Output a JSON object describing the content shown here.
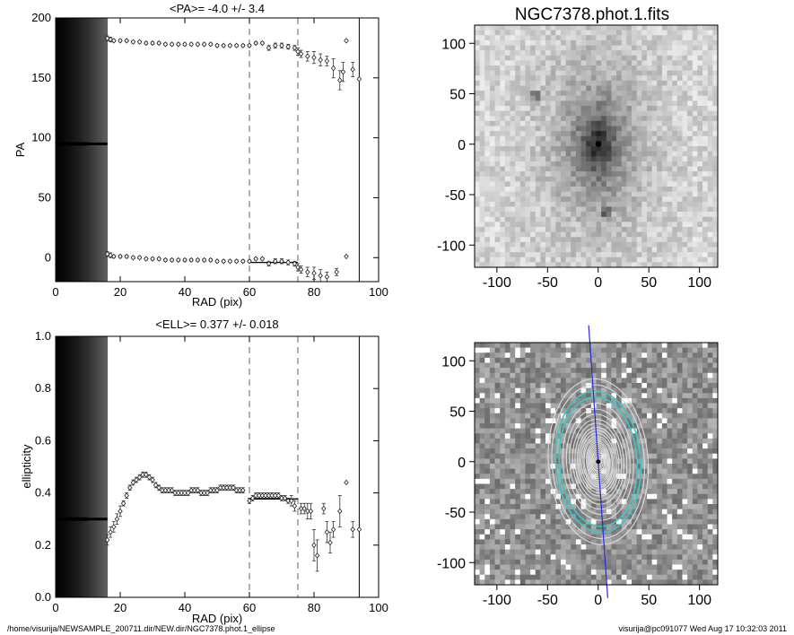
{
  "chart_data": [
    {
      "type": "scatter",
      "title": "<PA>=  -4.0 +/-   3.4",
      "xlabel": "RAD (pix)",
      "ylabel": "PA",
      "xlim": [
        0,
        100
      ],
      "ylim": [
        -20,
        200
      ],
      "xticks": [
        "0",
        "20",
        "40",
        "60",
        "80",
        "100"
      ],
      "yticks": [
        "0",
        "50",
        "100",
        "150",
        "200"
      ],
      "reference_lines": {
        "dashed_x": [
          60,
          75
        ],
        "solid_x": [
          94
        ],
        "fit_range": [
          60,
          75
        ],
        "fit_value": -4.0
      },
      "series": [
        {
          "points": [
            {
              "x": 16,
              "y": 183,
              "err": 2
            },
            {
              "x": 17,
              "y": 182,
              "err": 2
            },
            {
              "x": 18,
              "y": 181,
              "err": 1
            },
            {
              "x": 20,
              "y": 181,
              "err": 1
            },
            {
              "x": 22,
              "y": 181,
              "err": 1
            },
            {
              "x": 24,
              "y": 180,
              "err": 1
            },
            {
              "x": 26,
              "y": 180,
              "err": 1
            },
            {
              "x": 28,
              "y": 179,
              "err": 1
            },
            {
              "x": 30,
              "y": 179,
              "err": 1
            },
            {
              "x": 32,
              "y": 179,
              "err": 1
            },
            {
              "x": 34,
              "y": 178,
              "err": 1
            },
            {
              "x": 36,
              "y": 178,
              "err": 1
            },
            {
              "x": 38,
              "y": 178,
              "err": 1
            },
            {
              "x": 40,
              "y": 178,
              "err": 1
            },
            {
              "x": 42,
              "y": 178,
              "err": 1
            },
            {
              "x": 44,
              "y": 178,
              "err": 1
            },
            {
              "x": 46,
              "y": 178,
              "err": 1
            },
            {
              "x": 48,
              "y": 178,
              "err": 1
            },
            {
              "x": 50,
              "y": 177,
              "err": 1
            },
            {
              "x": 52,
              "y": 177,
              "err": 1
            },
            {
              "x": 54,
              "y": 177,
              "err": 1
            },
            {
              "x": 56,
              "y": 177,
              "err": 1
            },
            {
              "x": 58,
              "y": 177,
              "err": 1
            },
            {
              "x": 60,
              "y": 177,
              "err": 1
            },
            {
              "x": 62,
              "y": 179,
              "err": 1
            },
            {
              "x": 64,
              "y": 179,
              "err": 1
            },
            {
              "x": 66,
              "y": 175,
              "err": 2
            },
            {
              "x": 68,
              "y": 177,
              "err": 2
            },
            {
              "x": 70,
              "y": 177,
              "err": 2
            },
            {
              "x": 72,
              "y": 176,
              "err": 2
            },
            {
              "x": 74,
              "y": 175,
              "err": 2
            },
            {
              "x": 75,
              "y": 172,
              "err": 3
            },
            {
              "x": 76,
              "y": 170,
              "err": 3
            },
            {
              "x": 78,
              "y": 168,
              "err": 4
            },
            {
              "x": 80,
              "y": 167,
              "err": 5
            },
            {
              "x": 82,
              "y": 165,
              "err": 5
            },
            {
              "x": 84,
              "y": 164,
              "err": 4
            },
            {
              "x": 86,
              "y": 158,
              "err": 8
            },
            {
              "x": 88,
              "y": 148,
              "err": 8
            },
            {
              "x": 89,
              "y": 155,
              "err": 8
            },
            {
              "x": 90,
              "y": 181,
              "err": 0
            },
            {
              "x": 92,
              "y": 157,
              "err": 6
            },
            {
              "x": 94,
              "y": 149,
              "err": 0
            }
          ]
        },
        {
          "points": [
            {
              "x": 16,
              "y": 3,
              "err": 2
            },
            {
              "x": 17,
              "y": 2,
              "err": 2
            },
            {
              "x": 18,
              "y": 1,
              "err": 1
            },
            {
              "x": 20,
              "y": 1,
              "err": 1
            },
            {
              "x": 22,
              "y": 1,
              "err": 1
            },
            {
              "x": 24,
              "y": 0,
              "err": 1
            },
            {
              "x": 26,
              "y": 0,
              "err": 1
            },
            {
              "x": 28,
              "y": -1,
              "err": 1
            },
            {
              "x": 30,
              "y": -1,
              "err": 1
            },
            {
              "x": 32,
              "y": -1,
              "err": 1
            },
            {
              "x": 34,
              "y": -2,
              "err": 1
            },
            {
              "x": 36,
              "y": -2,
              "err": 1
            },
            {
              "x": 38,
              "y": -2,
              "err": 1
            },
            {
              "x": 40,
              "y": -2,
              "err": 1
            },
            {
              "x": 42,
              "y": -2,
              "err": 1
            },
            {
              "x": 44,
              "y": -2,
              "err": 1
            },
            {
              "x": 46,
              "y": -2,
              "err": 1
            },
            {
              "x": 48,
              "y": -2,
              "err": 1
            },
            {
              "x": 50,
              "y": -3,
              "err": 1
            },
            {
              "x": 52,
              "y": -3,
              "err": 1
            },
            {
              "x": 54,
              "y": -3,
              "err": 1
            },
            {
              "x": 56,
              "y": -3,
              "err": 1
            },
            {
              "x": 58,
              "y": -3,
              "err": 1
            },
            {
              "x": 60,
              "y": -3,
              "err": 1
            },
            {
              "x": 62,
              "y": -1,
              "err": 1
            },
            {
              "x": 64,
              "y": -1,
              "err": 1
            },
            {
              "x": 66,
              "y": -5,
              "err": 2
            },
            {
              "x": 68,
              "y": -3,
              "err": 2
            },
            {
              "x": 70,
              "y": -3,
              "err": 2
            },
            {
              "x": 72,
              "y": -4,
              "err": 2
            },
            {
              "x": 74,
              "y": -5,
              "err": 2
            },
            {
              "x": 75,
              "y": -8,
              "err": 3
            },
            {
              "x": 76,
              "y": -10,
              "err": 3
            },
            {
              "x": 78,
              "y": -12,
              "err": 4
            },
            {
              "x": 80,
              "y": -13,
              "err": 5
            },
            {
              "x": 82,
              "y": -15,
              "err": 5
            },
            {
              "x": 84,
              "y": -16,
              "err": 4
            },
            {
              "x": 87,
              "y": -12,
              "err": 3
            },
            {
              "x": 90,
              "y": 1,
              "err": 0
            }
          ]
        }
      ]
    },
    {
      "type": "scatter",
      "title": "<ELL>= 0.377 +/-  0.018",
      "xlabel": "RAD (pix)",
      "ylabel": "ellipticity",
      "xlim": [
        0,
        100
      ],
      "ylim": [
        0,
        1
      ],
      "xticks": [
        "0",
        "20",
        "40",
        "60",
        "80",
        "100"
      ],
      "yticks": [
        "0.0",
        "0.2",
        "0.4",
        "0.6",
        "0.8",
        "1.0"
      ],
      "reference_lines": {
        "dashed_x": [
          60,
          75
        ],
        "solid_x": [
          94
        ],
        "fit_range": [
          60,
          75
        ],
        "fit_value": 0.377
      },
      "series": [
        {
          "points": [
            {
              "x": 16,
              "y": 0.22,
              "err": 0.02
            },
            {
              "x": 17,
              "y": 0.25,
              "err": 0.02
            },
            {
              "x": 18,
              "y": 0.27,
              "err": 0.02
            },
            {
              "x": 19,
              "y": 0.3,
              "err": 0.02
            },
            {
              "x": 20,
              "y": 0.33,
              "err": 0.02
            },
            {
              "x": 21,
              "y": 0.36,
              "err": 0.01
            },
            {
              "x": 22,
              "y": 0.39,
              "err": 0.01
            },
            {
              "x": 23,
              "y": 0.42,
              "err": 0.01
            },
            {
              "x": 24,
              "y": 0.44,
              "err": 0.01
            },
            {
              "x": 25,
              "y": 0.45,
              "err": 0.01
            },
            {
              "x": 26,
              "y": 0.46,
              "err": 0.01
            },
            {
              "x": 27,
              "y": 0.47,
              "err": 0.01
            },
            {
              "x": 28,
              "y": 0.47,
              "err": 0.01
            },
            {
              "x": 29,
              "y": 0.46,
              "err": 0.01
            },
            {
              "x": 30,
              "y": 0.45,
              "err": 0.01
            },
            {
              "x": 31,
              "y": 0.43,
              "err": 0.01
            },
            {
              "x": 32,
              "y": 0.42,
              "err": 0.01
            },
            {
              "x": 33,
              "y": 0.41,
              "err": 0.01
            },
            {
              "x": 34,
              "y": 0.41,
              "err": 0.01
            },
            {
              "x": 35,
              "y": 0.41,
              "err": 0.01
            },
            {
              "x": 36,
              "y": 0.41,
              "err": 0.01
            },
            {
              "x": 37,
              "y": 0.4,
              "err": 0.01
            },
            {
              "x": 38,
              "y": 0.4,
              "err": 0.01
            },
            {
              "x": 39,
              "y": 0.4,
              "err": 0.01
            },
            {
              "x": 40,
              "y": 0.4,
              "err": 0.01
            },
            {
              "x": 41,
              "y": 0.4,
              "err": 0.01
            },
            {
              "x": 42,
              "y": 0.41,
              "err": 0.01
            },
            {
              "x": 43,
              "y": 0.41,
              "err": 0.01
            },
            {
              "x": 44,
              "y": 0.41,
              "err": 0.01
            },
            {
              "x": 45,
              "y": 0.4,
              "err": 0.01
            },
            {
              "x": 46,
              "y": 0.4,
              "err": 0.01
            },
            {
              "x": 47,
              "y": 0.4,
              "err": 0.01
            },
            {
              "x": 48,
              "y": 0.41,
              "err": 0.01
            },
            {
              "x": 49,
              "y": 0.41,
              "err": 0.01
            },
            {
              "x": 50,
              "y": 0.41,
              "err": 0.01
            },
            {
              "x": 51,
              "y": 0.42,
              "err": 0.01
            },
            {
              "x": 52,
              "y": 0.42,
              "err": 0.01
            },
            {
              "x": 53,
              "y": 0.42,
              "err": 0.01
            },
            {
              "x": 54,
              "y": 0.42,
              "err": 0.01
            },
            {
              "x": 55,
              "y": 0.42,
              "err": 0.01
            },
            {
              "x": 56,
              "y": 0.41,
              "err": 0.01
            },
            {
              "x": 57,
              "y": 0.41,
              "err": 0.01
            },
            {
              "x": 58,
              "y": 0.41,
              "err": 0.01
            },
            {
              "x": 60,
              "y": 0.37,
              "err": 0.01
            },
            {
              "x": 61,
              "y": 0.38,
              "err": 0.01
            },
            {
              "x": 62,
              "y": 0.39,
              "err": 0.01
            },
            {
              "x": 63,
              "y": 0.39,
              "err": 0.01
            },
            {
              "x": 64,
              "y": 0.39,
              "err": 0.01
            },
            {
              "x": 65,
              "y": 0.39,
              "err": 0.01
            },
            {
              "x": 66,
              "y": 0.39,
              "err": 0.01
            },
            {
              "x": 67,
              "y": 0.39,
              "err": 0.01
            },
            {
              "x": 68,
              "y": 0.39,
              "err": 0.01
            },
            {
              "x": 69,
              "y": 0.39,
              "err": 0.01
            },
            {
              "x": 70,
              "y": 0.38,
              "err": 0.01
            },
            {
              "x": 71,
              "y": 0.38,
              "err": 0.01
            },
            {
              "x": 72,
              "y": 0.37,
              "err": 0.01
            },
            {
              "x": 73,
              "y": 0.37,
              "err": 0.02
            },
            {
              "x": 74,
              "y": 0.35,
              "err": 0.02
            },
            {
              "x": 76,
              "y": 0.34,
              "err": 0.02
            },
            {
              "x": 77,
              "y": 0.34,
              "err": 0.02
            },
            {
              "x": 78,
              "y": 0.33,
              "err": 0.03
            },
            {
              "x": 79,
              "y": 0.33,
              "err": 0.03
            },
            {
              "x": 80,
              "y": 0.2,
              "err": 0.06
            },
            {
              "x": 81,
              "y": 0.16,
              "err": 0.06
            },
            {
              "x": 83,
              "y": 0.34,
              "err": 0.02
            },
            {
              "x": 84,
              "y": 0.25,
              "err": 0.04
            },
            {
              "x": 85,
              "y": 0.21,
              "err": 0.04
            },
            {
              "x": 86,
              "y": 0.26,
              "err": 0.03
            },
            {
              "x": 88,
              "y": 0.33,
              "err": 0.06
            },
            {
              "x": 90,
              "y": 0.44,
              "err": 0.0
            },
            {
              "x": 92,
              "y": 0.26,
              "err": 0.03
            },
            {
              "x": 94,
              "y": 0.26,
              "err": 0.0
            }
          ]
        }
      ]
    }
  ],
  "images": {
    "title": "NGC7378.phot.1.fits",
    "xticks": [
      "-100",
      "-50",
      "0",
      "50",
      "100"
    ],
    "yticks": [
      "100",
      "50",
      "0",
      "-50",
      "-100"
    ],
    "range": [
      -122,
      118
    ],
    "isophote_color": "#dcdcdc",
    "highlight_color": "#3ec7c7",
    "major_axis_color": "#2a2ae0"
  },
  "footer": {
    "left": "/home/visurija/NEWSAMPLE_200711.dir/NEW.dir/NGC7378.phot.1_ellipse",
    "right": "visurija@pc091077  Wed Aug 17 10:32:03 2011"
  }
}
